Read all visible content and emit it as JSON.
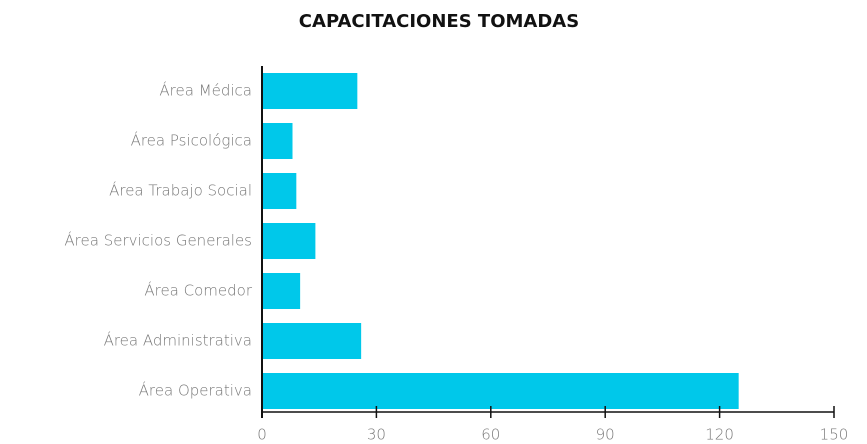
{
  "chart_data": {
    "type": "bar",
    "orientation": "horizontal",
    "title": "CAPACITACIONES TOMADAS",
    "categories": [
      "Área Médica",
      "Área Psicológica",
      "Área Trabajo Social",
      "Área Servicios Generales",
      "Área Comedor",
      "Área Administrativa",
      "Área Operativa"
    ],
    "values": [
      25,
      8,
      9,
      14,
      10,
      26,
      125
    ],
    "color": "#00c8ea",
    "xlim": [
      0,
      150
    ],
    "xticks": [
      0,
      30,
      60,
      90,
      120,
      150
    ],
    "grid": false
  }
}
